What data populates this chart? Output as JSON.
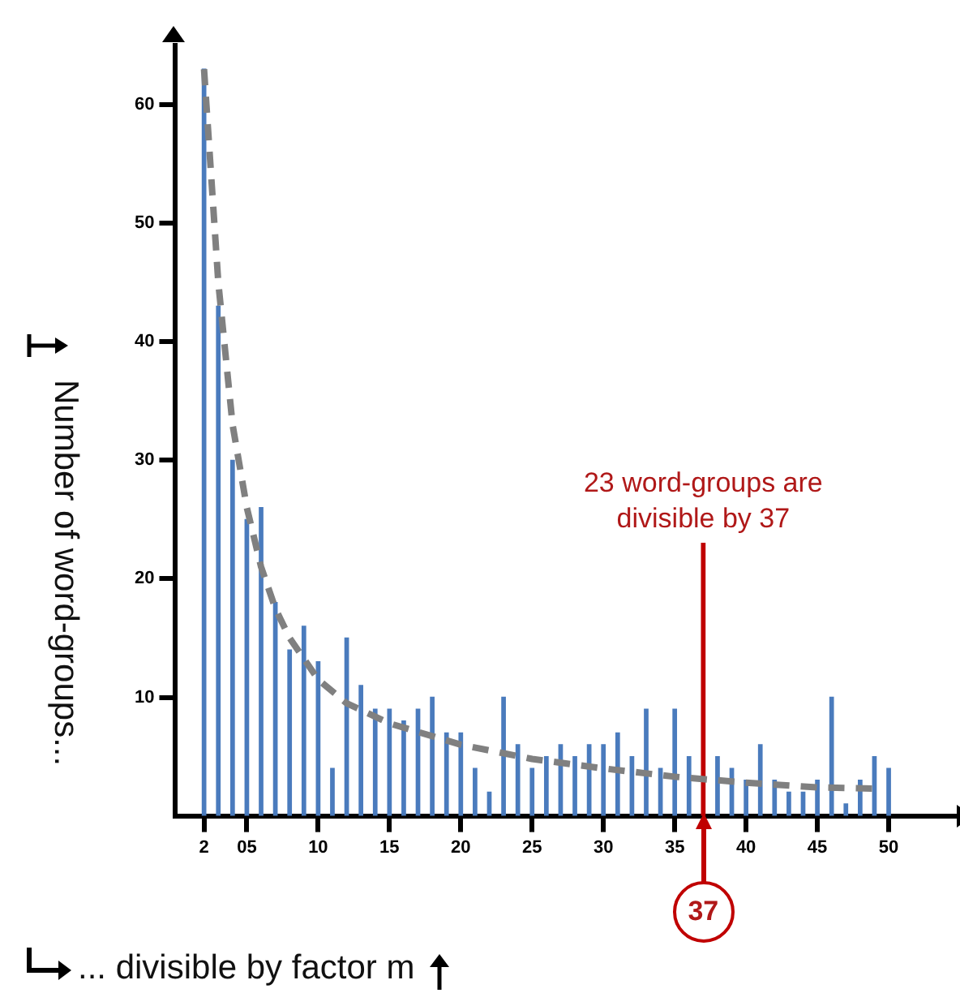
{
  "chart_data": {
    "type": "bar",
    "xlabel": "... divisible by factor m",
    "ylabel": "Number of word-groups...",
    "x": [
      2,
      3,
      4,
      5,
      6,
      7,
      8,
      9,
      10,
      11,
      12,
      13,
      14,
      15,
      16,
      17,
      18,
      19,
      20,
      21,
      22,
      23,
      24,
      25,
      26,
      27,
      28,
      29,
      30,
      31,
      32,
      33,
      34,
      35,
      36,
      37,
      38,
      39,
      40,
      41,
      42,
      43,
      44,
      45,
      46,
      47,
      48,
      49,
      50
    ],
    "series": [
      {
        "colors": [
          "#4a7bbd",
          "#4a7bbd",
          "#4a7bbd",
          "#4a7bbd",
          "#4a7bbd",
          "#4a7bbd",
          "#4a7bbd",
          "#4a7bbd",
          "#4a7bbd",
          "#4a7bbd",
          "#4a7bbd",
          "#4a7bbd",
          "#4a7bbd",
          "#4a7bbd",
          "#4a7bbd",
          "#4a7bbd",
          "#4a7bbd",
          "#4a7bbd",
          "#4a7bbd",
          "#4a7bbd",
          "#4a7bbd",
          "#4a7bbd",
          "#4a7bbd",
          "#4a7bbd",
          "#4a7bbd",
          "#4a7bbd",
          "#4a7bbd",
          "#4a7bbd",
          "#4a7bbd",
          "#4a7bbd",
          "#4a7bbd",
          "#4a7bbd",
          "#4a7bbd",
          "#4a7bbd",
          "#4a7bbd",
          "#c00000",
          "#4a7bbd",
          "#4a7bbd",
          "#4a7bbd",
          "#4a7bbd",
          "#4a7bbd",
          "#4a7bbd",
          "#4a7bbd",
          "#4a7bbd",
          "#4a7bbd",
          "#4a7bbd",
          "#4a7bbd",
          "#4a7bbd",
          "#4a7bbd"
        ],
        "values": [
          63,
          43,
          30,
          25,
          26,
          18,
          14,
          16,
          13,
          4,
          15,
          11,
          9,
          9,
          8,
          9,
          10,
          7,
          7,
          4,
          2,
          10,
          6,
          4,
          5,
          6,
          5,
          6,
          6,
          7,
          5,
          9,
          4,
          9,
          5,
          23,
          5,
          4,
          3,
          6,
          3,
          2,
          2,
          3,
          10,
          1,
          3,
          5,
          4
        ]
      },
      {
        "type": "line",
        "color": "#808080",
        "line_style": "dashed",
        "marker": "none",
        "x": [
          2,
          3,
          4,
          5,
          6,
          7,
          8,
          10,
          12,
          15,
          20,
          25,
          30,
          35,
          40,
          45,
          49
        ],
        "values": [
          63,
          45,
          33,
          26,
          21,
          17.5,
          15,
          11.5,
          9.5,
          7.8,
          6,
          4.8,
          4,
          3.3,
          2.8,
          2.4,
          2.3
        ]
      }
    ],
    "xlim": [
      0,
      55
    ],
    "xticks": [
      {
        "value": 2,
        "label": "2"
      },
      {
        "value": 5,
        "label": "05"
      },
      10,
      15,
      20,
      25,
      30,
      35,
      40,
      45,
      50
    ],
    "ylim": [
      0,
      65
    ],
    "yticks": [
      10,
      20,
      30,
      40,
      50,
      60
    ],
    "grid": false,
    "legend": false,
    "annotations": [
      {
        "text": "23 word-groups are divisible by 37",
        "x": 37,
        "y": 23
      },
      {
        "text": "37",
        "x": 37,
        "y": 0
      }
    ]
  }
}
